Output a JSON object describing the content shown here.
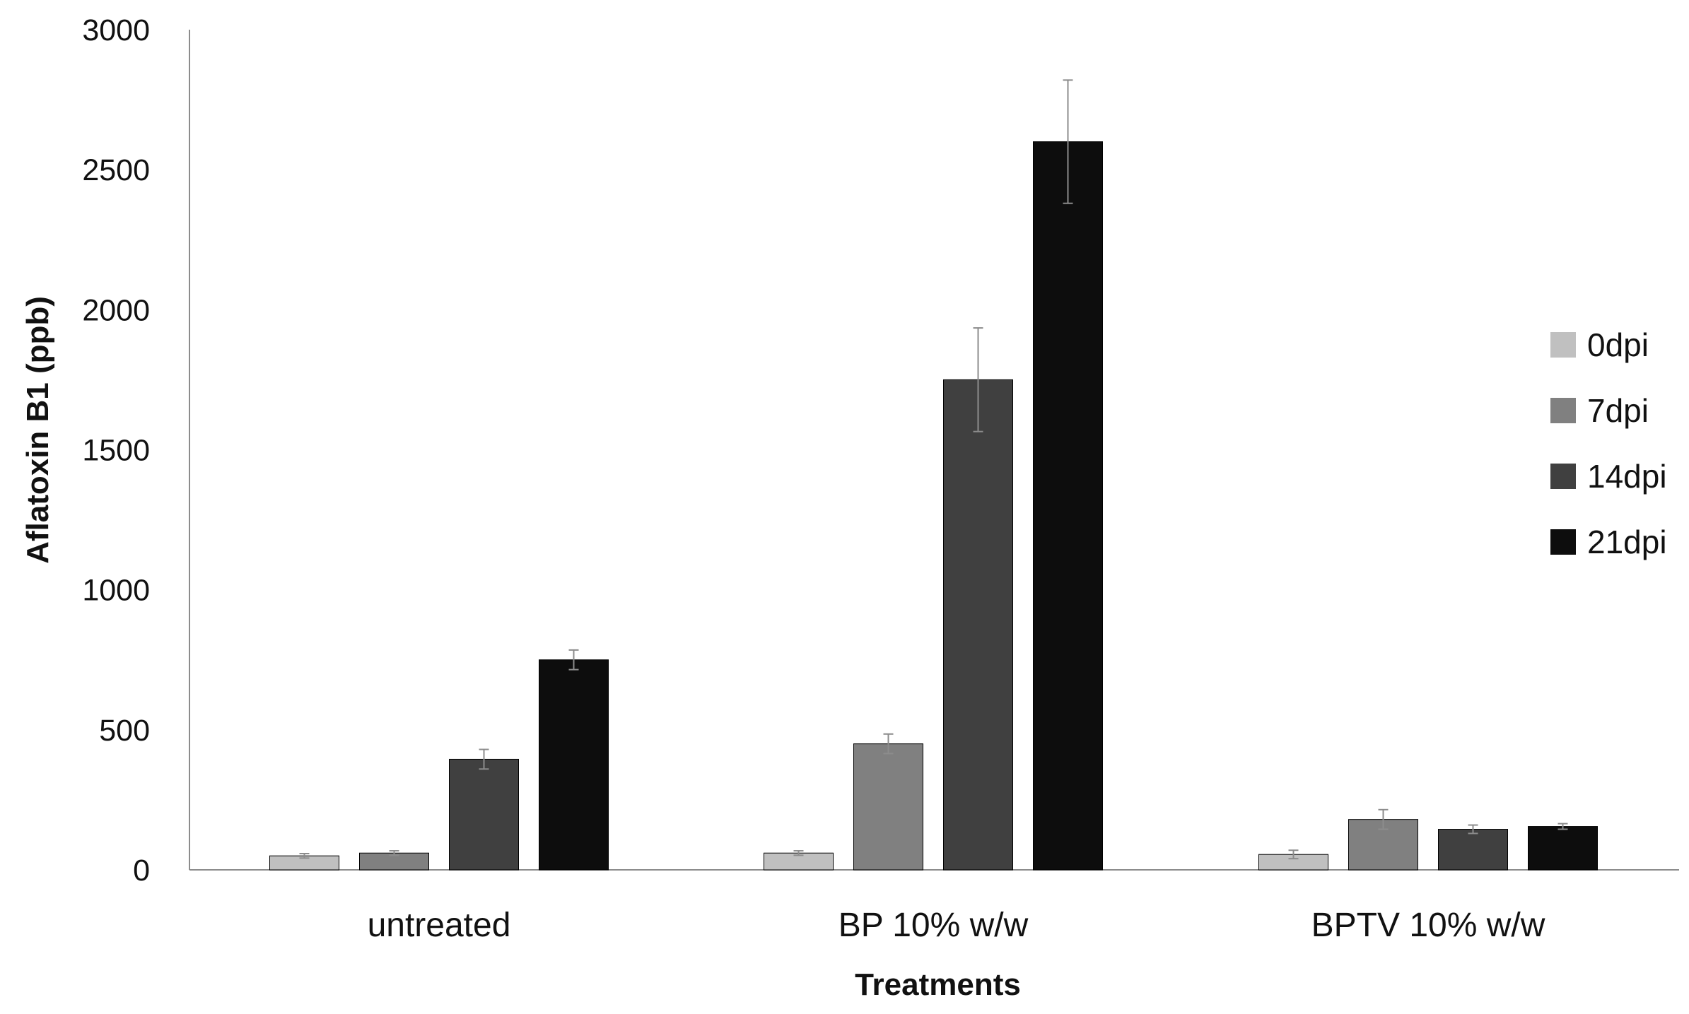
{
  "chart_data": {
    "type": "bar",
    "title": "",
    "xlabel": "Treatments",
    "ylabel": "Aflatoxin B1 (ppb)",
    "ylim": [
      0,
      3000
    ],
    "yticks": [
      0,
      500,
      1000,
      1500,
      2000,
      2500,
      3000
    ],
    "categories": [
      "untreated",
      "BP 10% w/w",
      "BPTV 10% w/w"
    ],
    "series": [
      {
        "name": "0dpi",
        "color": "#c0c0c0",
        "values": [
          50,
          60,
          55
        ],
        "errors": [
          8,
          8,
          15
        ]
      },
      {
        "name": "7dpi",
        "color": "#808080",
        "values": [
          60,
          450,
          180
        ],
        "errors": [
          8,
          35,
          35
        ]
      },
      {
        "name": "14dpi",
        "color": "#404040",
        "values": [
          395,
          1750,
          145
        ],
        "errors": [
          35,
          185,
          15
        ]
      },
      {
        "name": "21dpi",
        "color": "#0d0d0d",
        "values": [
          750,
          2600,
          155
        ],
        "errors": [
          35,
          220,
          10
        ]
      }
    ],
    "grid": false,
    "legend_position": "right",
    "error_bars": true
  }
}
